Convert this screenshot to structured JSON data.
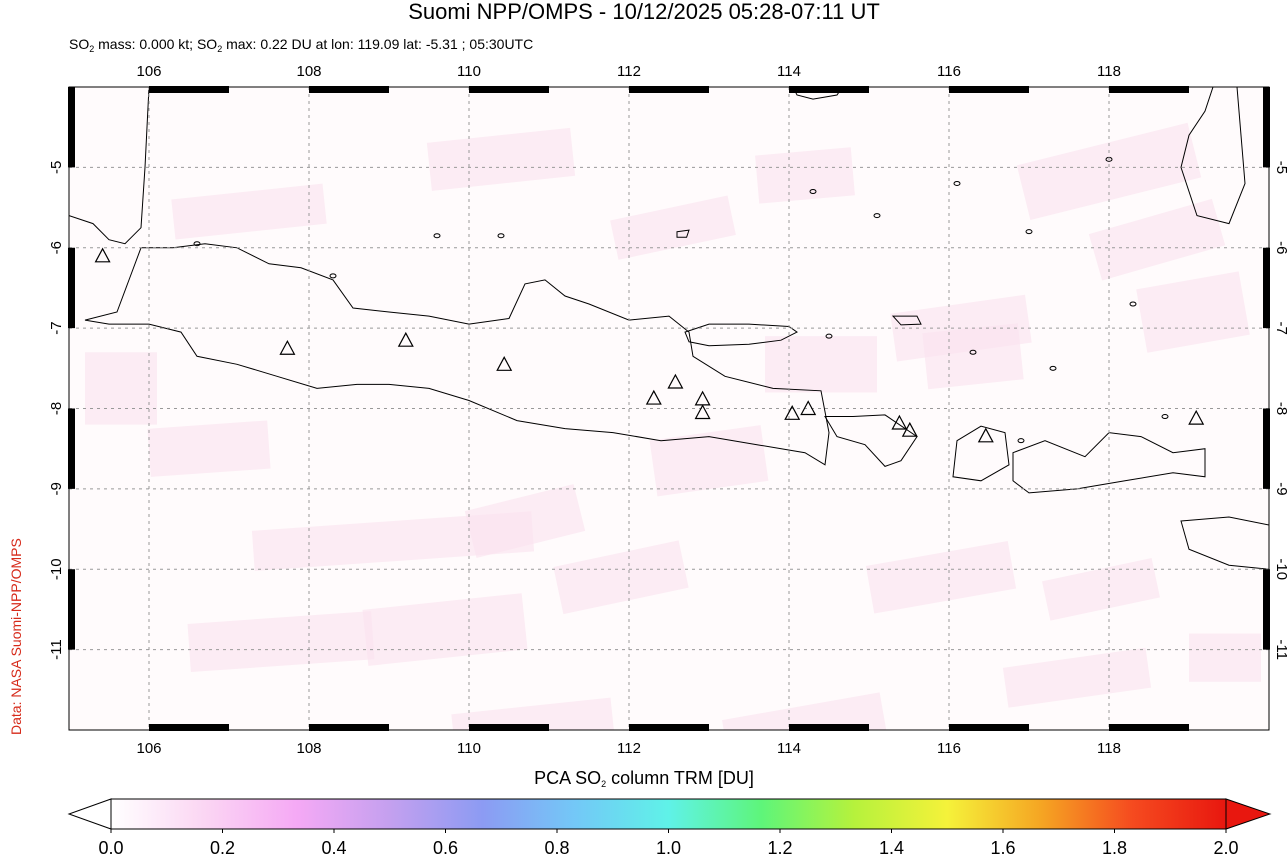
{
  "title": "Suomi NPP/OMPS - 10/12/2025 05:28-07:11 UT",
  "subtitle": {
    "pre": "SO",
    "sub": "2",
    "mid": " mass: 0.000 kt; SO",
    "sub2": "2",
    "post": " max: 0.22 DU at lon: 119.09 lat: -5.31 ; 05:30UTC"
  },
  "credit": "Data: NASA Suomi-NPP/OMPS",
  "colorbar_label": {
    "pre": "PCA SO",
    "sub": "2",
    "post": " column TRM [DU]"
  },
  "chart_data": {
    "type": "map",
    "lon_range": [
      105,
      120
    ],
    "lat_range": [
      -12,
      -4
    ],
    "lon_ticks": [
      "106",
      "108",
      "110",
      "112",
      "114",
      "116",
      "118"
    ],
    "lat_ticks": [
      "-5",
      "-6",
      "-7",
      "-8",
      "-9",
      "-10",
      "-11"
    ],
    "grid": true,
    "colorbar": {
      "min": 0.0,
      "max": 2.0,
      "ticks": [
        "0.0",
        "0.2",
        "0.4",
        "0.6",
        "0.8",
        "1.0",
        "1.2",
        "1.4",
        "1.6",
        "1.8",
        "2.0"
      ],
      "colors": [
        "#ffffff",
        "#fbd6f3",
        "#f5a9f5",
        "#c4a0ef",
        "#8c9bf3",
        "#73c8f7",
        "#5ff2e8",
        "#5ef57a",
        "#b6f23c",
        "#f5f23a",
        "#f5a623",
        "#f54a1f",
        "#e8170f"
      ]
    },
    "volcanoes": [
      {
        "lon": 105.42,
        "lat": -6.1
      },
      {
        "lon": 107.73,
        "lat": -7.25
      },
      {
        "lon": 109.21,
        "lat": -7.15
      },
      {
        "lon": 110.44,
        "lat": -7.45
      },
      {
        "lon": 112.31,
        "lat": -7.87
      },
      {
        "lon": 112.58,
        "lat": -7.67
      },
      {
        "lon": 112.92,
        "lat": -7.88
      },
      {
        "lon": 112.92,
        "lat": -8.05
      },
      {
        "lon": 114.04,
        "lat": -8.06
      },
      {
        "lon": 114.24,
        "lat": -8.0
      },
      {
        "lon": 115.38,
        "lat": -8.18
      },
      {
        "lon": 115.51,
        "lat": -8.27
      },
      {
        "lon": 116.46,
        "lat": -8.34
      },
      {
        "lon": 119.09,
        "lat": -8.12
      }
    ]
  }
}
